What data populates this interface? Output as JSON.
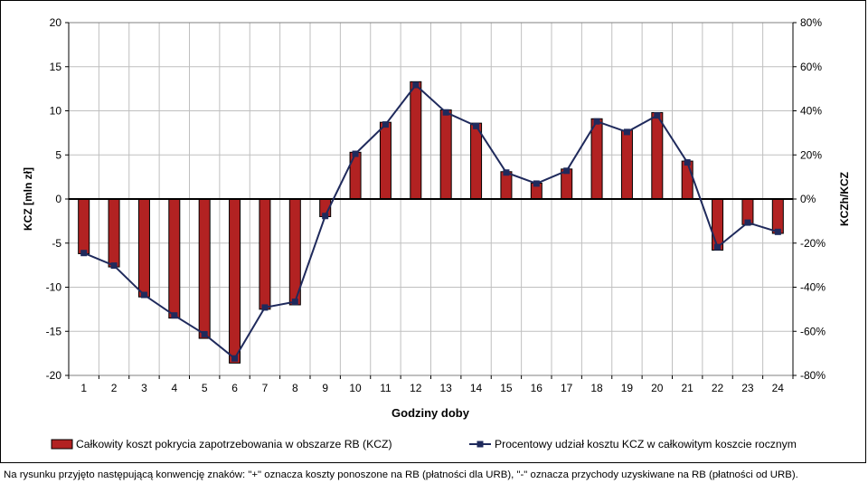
{
  "chart_data": {
    "type": "bar+line",
    "xlabel": "Godziny doby",
    "ylabel_left": "KCZ [mln zł]",
    "ylabel_right": "KCZh/KCZ",
    "categories": [
      "1",
      "2",
      "3",
      "4",
      "5",
      "6",
      "7",
      "8",
      "9",
      "10",
      "11",
      "12",
      "13",
      "14",
      "15",
      "16",
      "17",
      "18",
      "19",
      "20",
      "21",
      "22",
      "23",
      "24"
    ],
    "ylim_left": [
      -20,
      20
    ],
    "yticks_left": [
      "20",
      "15",
      "10",
      "5",
      "0",
      "-5",
      "-10",
      "-15",
      "-20"
    ],
    "ylim_right": [
      -80,
      80
    ],
    "yticks_right": [
      "80%",
      "60%",
      "40%",
      "20%",
      "0%",
      "-20%",
      "-40%",
      "-60%",
      "-80%"
    ],
    "grid": true,
    "legend_position": "bottom",
    "series": [
      {
        "name": "Całkowity koszt pokrycia zapotrzebowania w obszarze RB (KCZ)",
        "type": "bar",
        "axis": "left",
        "color": "#B22222",
        "values": [
          -6.2,
          -7.7,
          -11.1,
          -13.5,
          -15.8,
          -18.6,
          -12.5,
          -12.0,
          -2.0,
          5.3,
          8.7,
          13.3,
          10.1,
          8.6,
          3.1,
          1.8,
          3.4,
          9.1,
          7.8,
          9.8,
          4.3,
          -5.8,
          -2.9,
          -3.9
        ]
      },
      {
        "name": "Procentowy udział kosztu KCZ w całkowitym koszcie rocznym",
        "type": "line",
        "axis": "right",
        "color": "#1F2A5C",
        "values": [
          -24.5,
          -30.2,
          -43.5,
          -52.8,
          -61.3,
          -72.3,
          -49.2,
          -46.6,
          -7.7,
          20.5,
          33.8,
          51.7,
          39.3,
          33.1,
          12.0,
          7.0,
          12.8,
          35.2,
          30.4,
          37.9,
          16.6,
          -21.8,
          -10.7,
          -14.9
        ]
      }
    ]
  },
  "footnote": "Na rysunku przyjęto następującą konwencję znaków: \"+\" oznacza koszty ponoszone na RB (płatności dla URB), \"-\" oznacza przychody uzyskiwane  na RB (płatności od URB)."
}
